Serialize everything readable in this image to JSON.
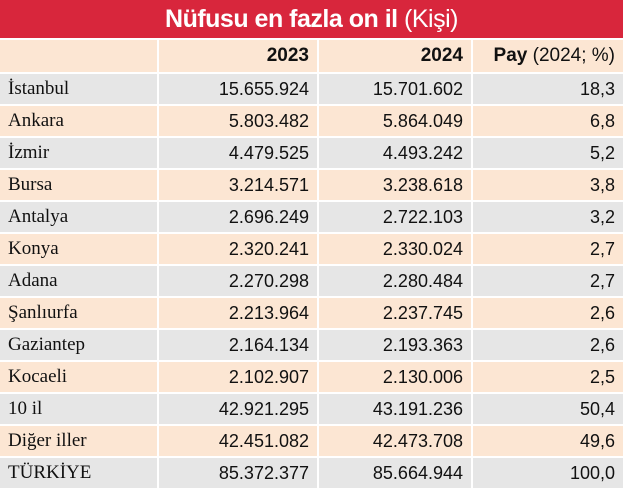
{
  "title": {
    "main": "Nüfusu en fazla on il",
    "unit": "(Kişi)"
  },
  "table": {
    "header": {
      "year1": "2023",
      "year2": "2024",
      "share": {
        "main": "Pay",
        "note": "(2024; %)"
      }
    },
    "rows": [
      [
        "İstanbul",
        "15.655.924",
        "15.701.602",
        "18,3"
      ],
      [
        "Ankara",
        "5.803.482",
        "5.864.049",
        "6,8"
      ],
      [
        "İzmir",
        "4.479.525",
        "4.493.242",
        "5,2"
      ],
      [
        "Bursa",
        "3.214.571",
        "3.238.618",
        "3,8"
      ],
      [
        "Antalya",
        "2.696.249",
        "2.722.103",
        "3,2"
      ],
      [
        "Konya",
        "2.320.241",
        "2.330.024",
        "2,7"
      ],
      [
        "Adana",
        "2.270.298",
        "2.280.484",
        "2,7"
      ],
      [
        "Şanlıurfa",
        "2.213.964",
        "2.237.745",
        "2,6"
      ],
      [
        "Gaziantep",
        "2.164.134",
        "2.193.363",
        "2,6"
      ],
      [
        "Kocaeli",
        "2.102.907",
        "2.130.006",
        "2,5"
      ],
      [
        "10 il",
        "42.921.295",
        "43.191.236",
        "50,4"
      ],
      [
        "Diğer iller",
        "42.451.082",
        "42.473.708",
        "49,6"
      ],
      [
        "TÜRKİYE",
        "85.372.377",
        "85.664.944",
        "100,0"
      ]
    ]
  }
}
